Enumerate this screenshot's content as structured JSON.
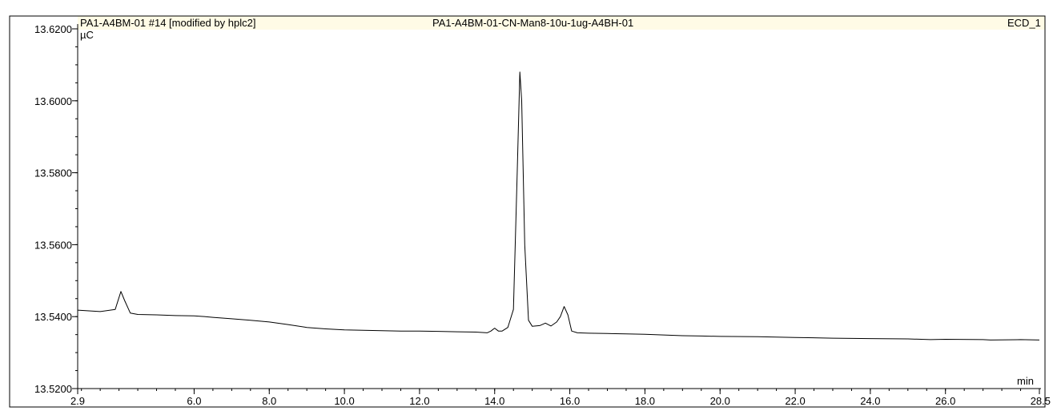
{
  "header": {
    "left": "PA1-A4BM-01 #14 [modified by hplc2]",
    "center": "PA1-A4BM-01-CN-Man8-10u-1ug-A4BH-01",
    "right": "ECD_1"
  },
  "colors": {
    "header_band": "#fffbe6",
    "trace": "#000000",
    "axes": "#000000",
    "frame": "#000000"
  },
  "chart_data": {
    "type": "line",
    "title": "PA1-A4BM-01-CN-Man8-10u-1ug-A4BH-01",
    "xlabel": "min",
    "ylabel": "µC",
    "xlim": [
      2.9,
      28.5
    ],
    "ylim": [
      13.52,
      13.62
    ],
    "x_ticks": [
      2.9,
      6.0,
      8.0,
      10.0,
      12.0,
      14.0,
      16.0,
      18.0,
      20.0,
      22.0,
      24.0,
      26.0,
      28.5
    ],
    "x_tick_labels": [
      "2.9",
      "6.0",
      "8.0",
      "10.0",
      "12.0",
      "14.0",
      "16.0",
      "18.0",
      "20.0",
      "22.0",
      "24.0",
      "26.0",
      "28.5"
    ],
    "y_ticks": [
      13.52,
      13.54,
      13.56,
      13.58,
      13.6,
      13.62
    ],
    "y_tick_labels": [
      "13.5200",
      "13.5400",
      "13.5600",
      "13.5800",
      "13.6000",
      "13.6200"
    ],
    "grid": false,
    "series": [
      {
        "x": [
          2.9,
          3.5,
          3.9,
          4.05,
          4.15,
          4.3,
          4.5,
          5.0,
          5.5,
          6.0,
          6.3,
          6.5,
          7.0,
          7.5,
          8.0,
          8.5,
          9.0,
          9.5,
          10.0,
          10.5,
          11.0,
          11.5,
          12.0,
          12.5,
          13.0,
          13.5,
          13.8,
          13.9,
          14.0,
          14.1,
          14.2,
          14.35,
          14.5,
          14.6,
          14.67,
          14.72,
          14.8,
          14.9,
          15.0,
          15.2,
          15.35,
          15.5,
          15.65,
          15.75,
          15.85,
          15.95,
          16.05,
          16.2,
          16.5,
          17.0,
          17.5,
          18.0,
          18.5,
          19.0,
          19.5,
          20.0,
          21.0,
          22.0,
          23.0,
          24.0,
          25.0,
          25.6,
          26.0,
          27.0,
          27.2,
          28.0,
          28.5
        ],
        "y": [
          13.5418,
          13.5414,
          13.542,
          13.547,
          13.5445,
          13.541,
          13.5406,
          13.5405,
          13.5403,
          13.5402,
          13.54,
          13.5398,
          13.5394,
          13.539,
          13.5385,
          13.5378,
          13.537,
          13.5366,
          13.5363,
          13.5362,
          13.5361,
          13.536,
          13.536,
          13.5359,
          13.5358,
          13.5357,
          13.5355,
          13.536,
          13.5368,
          13.536,
          13.536,
          13.537,
          13.542,
          13.58,
          13.608,
          13.6,
          13.56,
          13.539,
          13.5373,
          13.5375,
          13.5382,
          13.5374,
          13.5385,
          13.54,
          13.5428,
          13.5405,
          13.536,
          13.5355,
          13.5354,
          13.5353,
          13.5352,
          13.5351,
          13.5349,
          13.5347,
          13.5346,
          13.5345,
          13.5344,
          13.5342,
          13.534,
          13.5339,
          13.5338,
          13.5336,
          13.5337,
          13.5336,
          13.5335,
          13.5336,
          13.5335
        ]
      }
    ]
  }
}
